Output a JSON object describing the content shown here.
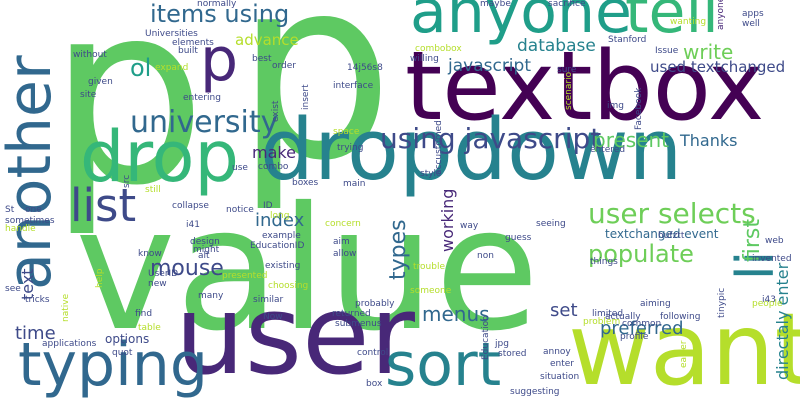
{
  "words": [
    {
      "text": "p",
      "color": "#5ec962"
    },
    {
      "text": "p",
      "color": "#5ec962"
    },
    {
      "text": "value",
      "color": "#5ec962"
    },
    {
      "text": "textbox",
      "color": "#440154"
    },
    {
      "text": "dropdown",
      "color": "#26828e"
    },
    {
      "text": "user",
      "color": "#482878"
    },
    {
      "text": "want",
      "color": "#b5de2b"
    },
    {
      "text": "anyone",
      "color": "#1f9e89"
    },
    {
      "text": "tell",
      "color": "#35b779"
    },
    {
      "text": "drop",
      "color": "#35b779"
    },
    {
      "text": "p",
      "color": "#482878"
    },
    {
      "text": "another",
      "color": "#31688e"
    },
    {
      "text": "sort",
      "color": "#26828e"
    },
    {
      "text": "typing",
      "color": "#31688e"
    },
    {
      "text": "list",
      "color": "#3e4a89"
    },
    {
      "text": "li",
      "color": "#26828e"
    },
    {
      "text": "university",
      "color": "#31688e"
    },
    {
      "text": "user selects",
      "color": "#6ece58"
    },
    {
      "text": "using javascript",
      "color": "#3e4a89"
    },
    {
      "text": "items using",
      "color": "#31688e"
    },
    {
      "text": "populate",
      "color": "#6ece58"
    },
    {
      "text": "mouse",
      "color": "#3e4a89"
    },
    {
      "text": "ol",
      "color": "#1f9e89"
    },
    {
      "text": "database",
      "color": "#26828e"
    },
    {
      "text": "write",
      "color": "#6ece58"
    },
    {
      "text": "javascript",
      "color": "#31688e"
    },
    {
      "text": "used textchanged",
      "color": "#3e4a89"
    },
    {
      "text": "present",
      "color": "#5ec962"
    },
    {
      "text": "Thanks",
      "color": "#31688e"
    },
    {
      "text": "make",
      "color": "#482878"
    },
    {
      "text": "index",
      "color": "#31688e"
    },
    {
      "text": "types",
      "color": "#31688e"
    },
    {
      "text": "working",
      "color": "#482878"
    },
    {
      "text": "menus",
      "color": "#31688e"
    },
    {
      "text": "set",
      "color": "#3e4a89"
    },
    {
      "text": "preferred",
      "color": "#31688e"
    },
    {
      "text": "first",
      "color": "#5ec962"
    },
    {
      "text": "directaly enter",
      "color": "#26828e"
    },
    {
      "text": "time",
      "color": "#3e4a89"
    },
    {
      "text": "text",
      "color": "#3e4a89"
    },
    {
      "text": "advance",
      "color": "#b5de2b"
    },
    {
      "text": "textchanged event",
      "color": "#31688e"
    },
    {
      "text": "options",
      "color": "#3e4a89"
    },
    {
      "text": "Universities",
      "color": "#3e4a89"
    },
    {
      "text": "elements",
      "color": "#3e4a89"
    },
    {
      "text": "normally",
      "color": "#3e4a89"
    },
    {
      "text": "maybe",
      "color": "#3e4a89"
    },
    {
      "text": "sacrifice",
      "color": "#3e4a89"
    },
    {
      "text": "wanting",
      "color": "#b5de2b"
    },
    {
      "text": "anyone",
      "color": "#482878"
    },
    {
      "text": "apps",
      "color": "#3e4a89"
    },
    {
      "text": "well",
      "color": "#3e4a89"
    },
    {
      "text": "Stanford",
      "color": "#3e4a89"
    },
    {
      "text": "Issue",
      "color": "#3e4a89"
    },
    {
      "text": "combobox",
      "color": "#b5de2b"
    },
    {
      "text": "willing",
      "color": "#3e4a89"
    },
    {
      "text": "without",
      "color": "#3e4a89"
    },
    {
      "text": "given",
      "color": "#3e4a89"
    },
    {
      "text": "site",
      "color": "#3e4a89"
    },
    {
      "text": "expand",
      "color": "#b5de2b"
    },
    {
      "text": "built",
      "color": "#3e4a89"
    },
    {
      "text": "best",
      "color": "#3e4a89"
    },
    {
      "text": "order",
      "color": "#3e4a89"
    },
    {
      "text": "14j56s8",
      "color": "#3e4a89"
    },
    {
      "text": "interface",
      "color": "#3e4a89"
    },
    {
      "text": "entering",
      "color": "#3e4a89"
    },
    {
      "text": "exist",
      "color": "#3e4a89"
    },
    {
      "text": "insert",
      "color": "#3e4a89"
    },
    {
      "text": "sure",
      "color": "#3e4a89"
    },
    {
      "text": "Facebook",
      "color": "#3e4a89"
    },
    {
      "text": "img",
      "color": "#3e4a89"
    },
    {
      "text": "scenario",
      "color": "#b5de2b"
    },
    {
      "text": "space",
      "color": "#b5de2b"
    },
    {
      "text": "trying",
      "color": "#3e4a89"
    },
    {
      "text": "combo",
      "color": "#3e4a89"
    },
    {
      "text": "main",
      "color": "#3e4a89"
    },
    {
      "text": "style",
      "color": "#3e4a89"
    },
    {
      "text": "accustomed",
      "color": "#3e4a89"
    },
    {
      "text": "entered",
      "color": "#3e4a89"
    },
    {
      "text": "src",
      "color": "#3e4a89"
    },
    {
      "text": "use",
      "color": "#3e4a89"
    },
    {
      "text": "boxes",
      "color": "#3e4a89"
    },
    {
      "text": "still",
      "color": "#b5de2b"
    },
    {
      "text": "collapse",
      "color": "#3e4a89"
    },
    {
      "text": "notice",
      "color": "#3e4a89"
    },
    {
      "text": "ID",
      "color": "#3e4a89"
    },
    {
      "text": "long",
      "color": "#b5de2b"
    },
    {
      "text": "i41",
      "color": "#3e4a89"
    },
    {
      "text": "concern",
      "color": "#b5de2b"
    },
    {
      "text": "way",
      "color": "#3e4a89"
    },
    {
      "text": "seeing",
      "color": "#3e4a89"
    },
    {
      "text": "guess",
      "color": "#3e4a89"
    },
    {
      "text": "St",
      "color": "#3e4a89"
    },
    {
      "text": "one",
      "color": "#3e4a89"
    },
    {
      "text": "sometimes",
      "color": "#3e4a89"
    },
    {
      "text": "handle",
      "color": "#b5de2b"
    },
    {
      "text": "design",
      "color": "#3e4a89"
    },
    {
      "text": "might",
      "color": "#3e4a89"
    },
    {
      "text": "example",
      "color": "#3e4a89"
    },
    {
      "text": "EducationID",
      "color": "#3e4a89"
    },
    {
      "text": "alt",
      "color": "#3e4a89"
    },
    {
      "text": "aim",
      "color": "#3e4a89"
    },
    {
      "text": "allow",
      "color": "#3e4a89"
    },
    {
      "text": "hufztt",
      "color": "#3e4a89"
    },
    {
      "text": "non",
      "color": "#3e4a89"
    },
    {
      "text": "web",
      "color": "#3e4a89"
    },
    {
      "text": "i43",
      "color": "#3e4a89"
    },
    {
      "text": "invented",
      "color": "#3e4a89"
    },
    {
      "text": "know",
      "color": "#3e4a89"
    },
    {
      "text": "UserID",
      "color": "#3e4a89"
    },
    {
      "text": "new",
      "color": "#3e4a89"
    },
    {
      "text": "existing",
      "color": "#3e4a89"
    },
    {
      "text": "presented",
      "color": "#b5de2b"
    },
    {
      "text": "choosing",
      "color": "#b5de2b"
    },
    {
      "text": "trouble",
      "color": "#b5de2b"
    },
    {
      "text": "things",
      "color": "#3e4a89"
    },
    {
      "text": "tinypic",
      "color": "#3e4a89"
    },
    {
      "text": "see",
      "color": "#3e4a89"
    },
    {
      "text": "tricks",
      "color": "#3e4a89"
    },
    {
      "text": "help",
      "color": "#b5de2b"
    },
    {
      "text": "find",
      "color": "#3e4a89"
    },
    {
      "text": "table",
      "color": "#b5de2b"
    },
    {
      "text": "many",
      "color": "#3e4a89"
    },
    {
      "text": "similar",
      "color": "#3e4a89"
    },
    {
      "text": "Now",
      "color": "#3e4a89"
    },
    {
      "text": "returned",
      "color": "#3e4a89"
    },
    {
      "text": "submenus",
      "color": "#3e4a89"
    },
    {
      "text": "someone",
      "color": "#b5de2b"
    },
    {
      "text": "probably",
      "color": "#3e4a89"
    },
    {
      "text": "problem",
      "color": "#b5de2b"
    },
    {
      "text": "aiming",
      "color": "#3e4a89"
    },
    {
      "text": "following",
      "color": "#3e4a89"
    },
    {
      "text": "people",
      "color": "#b5de2b"
    },
    {
      "text": "native",
      "color": "#b5de2b"
    },
    {
      "text": "applications",
      "color": "#3e4a89"
    },
    {
      "text": "quot",
      "color": "#3e4a89"
    },
    {
      "text": "control",
      "color": "#3e4a89"
    },
    {
      "text": "Education",
      "color": "#3e4a89"
    },
    {
      "text": "jpg",
      "color": "#3e4a89"
    },
    {
      "text": "stored",
      "color": "#3e4a89"
    },
    {
      "text": "annoy",
      "color": "#3e4a89"
    },
    {
      "text": "limited",
      "color": "#3e4a89"
    },
    {
      "text": "actually",
      "color": "#3e4a89"
    },
    {
      "text": "common",
      "color": "#3e4a89"
    },
    {
      "text": "profile",
      "color": "#3e4a89"
    },
    {
      "text": "easier",
      "color": "#b5de2b"
    },
    {
      "text": "enter",
      "color": "#3e4a89"
    },
    {
      "text": "situation",
      "color": "#3e4a89"
    },
    {
      "text": "box",
      "color": "#3e4a89"
    },
    {
      "text": "suggesting",
      "color": "#3e4a89"
    }
  ]
}
